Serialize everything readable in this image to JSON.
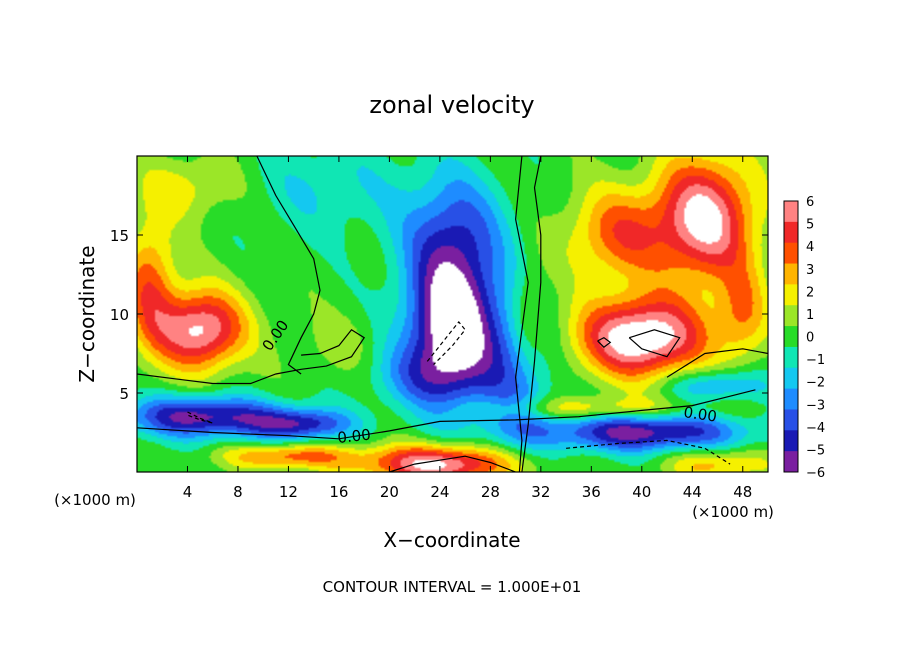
{
  "chart_data": {
    "type": "heatmap",
    "title": "zonal velocity",
    "xlabel": "X−coordinate",
    "ylabel": "Z−coordinate",
    "x_unit_left": "(×1000 m)",
    "x_unit_right": "(×1000 m)",
    "xlim": [
      0,
      50
    ],
    "ylim": [
      0,
      20
    ],
    "xticks": [
      4,
      8,
      12,
      16,
      20,
      24,
      28,
      32,
      36,
      40,
      44,
      48
    ],
    "yticks": [
      5,
      10,
      15
    ],
    "colorbar": {
      "ticks": [
        "6",
        "5",
        "4",
        "3",
        "2",
        "1",
        "0",
        "−1",
        "−2",
        "−3",
        "−4",
        "−5",
        "−6"
      ],
      "range": [
        -6,
        6
      ]
    },
    "contour_labels": [
      "0.00",
      "0.00",
      "0.00"
    ],
    "footer": "CONTOUR INTERVAL = 1.000E+01",
    "features": [
      {
        "x": 25,
        "y": 9,
        "sx": 3.5,
        "sy": 4.5,
        "v": -8
      },
      {
        "x": 25,
        "y": 15,
        "sx": 4,
        "sy": 4,
        "v": -4
      },
      {
        "x": 30,
        "y": 6,
        "sx": 3,
        "sy": 5,
        "v": -3
      },
      {
        "x": 22,
        "y": 6,
        "sx": 4,
        "sy": 2,
        "v": -2
      },
      {
        "x": 15,
        "y": 18,
        "sx": 6,
        "sy": 3,
        "v": -1.5
      },
      {
        "x": 16,
        "y": 8,
        "sx": 3,
        "sy": 2,
        "v": 1
      },
      {
        "x": 5,
        "y": 3.5,
        "sx": 6,
        "sy": 1.3,
        "v": -6
      },
      {
        "x": 13,
        "y": 3,
        "sx": 4,
        "sy": 1,
        "v": -5
      },
      {
        "x": 40,
        "y": 2.5,
        "sx": 8,
        "sy": 1.2,
        "v": -6
      },
      {
        "x": 46,
        "y": 5.5,
        "sx": 4,
        "sy": 1,
        "v": -3
      },
      {
        "x": 5,
        "y": 9,
        "sx": 3.5,
        "sy": 2.5,
        "v": 7
      },
      {
        "x": 1,
        "y": 12,
        "sx": 2,
        "sy": 4,
        "v": 4
      },
      {
        "x": 4,
        "y": 18,
        "sx": 4,
        "sy": 2,
        "v": 2
      },
      {
        "x": 40,
        "y": 8.5,
        "sx": 5,
        "sy": 2.5,
        "v": 8
      },
      {
        "x": 45,
        "y": 16,
        "sx": 4,
        "sy": 4,
        "v": 7
      },
      {
        "x": 38,
        "y": 15,
        "sx": 4,
        "sy": 3,
        "v": 4
      },
      {
        "x": 48,
        "y": 10,
        "sx": 2,
        "sy": 3,
        "v": 3
      },
      {
        "x": 31,
        "y": 10,
        "sx": 1.5,
        "sy": 3,
        "v": 2
      },
      {
        "x": 24,
        "y": 0.5,
        "sx": 6,
        "sy": 1.2,
        "v": 7
      },
      {
        "x": 12,
        "y": 1,
        "sx": 5,
        "sy": 0.8,
        "v": 4
      },
      {
        "x": 36,
        "y": 4,
        "sx": 8,
        "sy": 0.7,
        "v": 2.5
      },
      {
        "x": 46,
        "y": 0.5,
        "sx": 4,
        "sy": 1,
        "v": 3
      }
    ],
    "zero_contours": [
      [
        [
          0,
          6.2
        ],
        [
          3,
          5.9
        ],
        [
          6,
          5.6
        ],
        [
          9,
          5.6
        ],
        [
          11,
          6.2
        ],
        [
          13,
          6.5
        ],
        [
          15,
          6.7
        ],
        [
          17,
          7.3
        ],
        [
          18,
          8.5
        ],
        [
          17,
          9
        ],
        [
          16,
          8
        ],
        [
          14.5,
          7.5
        ],
        [
          13,
          7.4
        ]
      ],
      [
        [
          13,
          6.2
        ],
        [
          12,
          6.8
        ],
        [
          13,
          8.5
        ],
        [
          14,
          10
        ],
        [
          14.5,
          11.5
        ],
        [
          14,
          13.5
        ],
        [
          12.5,
          15.5
        ],
        [
          11,
          17.5
        ],
        [
          9.5,
          20
        ]
      ],
      [
        [
          0,
          2.8
        ],
        [
          6,
          2.5
        ],
        [
          12,
          2.3
        ],
        [
          16,
          2.1
        ],
        [
          20,
          2.6
        ],
        [
          24,
          3.2
        ],
        [
          30,
          3.3
        ],
        [
          35,
          3.5
        ],
        [
          40,
          3.9
        ],
        [
          44,
          4.2
        ],
        [
          47,
          4.8
        ],
        [
          49,
          5.2
        ]
      ],
      [
        [
          30.5,
          0
        ],
        [
          31,
          3
        ],
        [
          31.5,
          7
        ],
        [
          32,
          12
        ],
        [
          32,
          15
        ],
        [
          31.5,
          18
        ],
        [
          32,
          20
        ]
      ],
      [
        [
          30.3,
          0
        ],
        [
          30.5,
          2
        ],
        [
          30,
          6
        ],
        [
          31,
          12
        ],
        [
          30,
          16
        ],
        [
          30.5,
          20
        ]
      ],
      [
        [
          42,
          6
        ],
        [
          45,
          7.5
        ],
        [
          48,
          7.8
        ],
        [
          50,
          7.5
        ]
      ],
      [
        [
          20,
          0
        ],
        [
          22,
          0.5
        ],
        [
          26,
          1
        ],
        [
          28,
          0.6
        ],
        [
          30,
          0
        ]
      ]
    ],
    "negative_contours": [
      [
        [
          23,
          7
        ],
        [
          24,
          8
        ],
        [
          25.5,
          9.5
        ],
        [
          26,
          9
        ],
        [
          25,
          8
        ],
        [
          23.5,
          6.8
        ]
      ],
      [
        [
          4,
          3.8
        ],
        [
          5,
          3.4
        ],
        [
          6,
          3.1
        ],
        [
          5,
          3.3
        ],
        [
          4,
          3.6
        ]
      ],
      [
        [
          34,
          1.5
        ],
        [
          38,
          1.8
        ],
        [
          42,
          2
        ],
        [
          45,
          1.5
        ],
        [
          47,
          0.5
        ]
      ]
    ],
    "positive_contours": [
      [
        [
          39,
          8.5
        ],
        [
          41,
          9
        ],
        [
          43,
          8.5
        ],
        [
          42,
          7.3
        ],
        [
          40,
          7.8
        ],
        [
          39,
          8.5
        ]
      ],
      [
        [
          36.5,
          8.3
        ],
        [
          37,
          8.5
        ],
        [
          37.5,
          8.2
        ],
        [
          37,
          7.9
        ],
        [
          36.5,
          8.3
        ]
      ]
    ]
  }
}
